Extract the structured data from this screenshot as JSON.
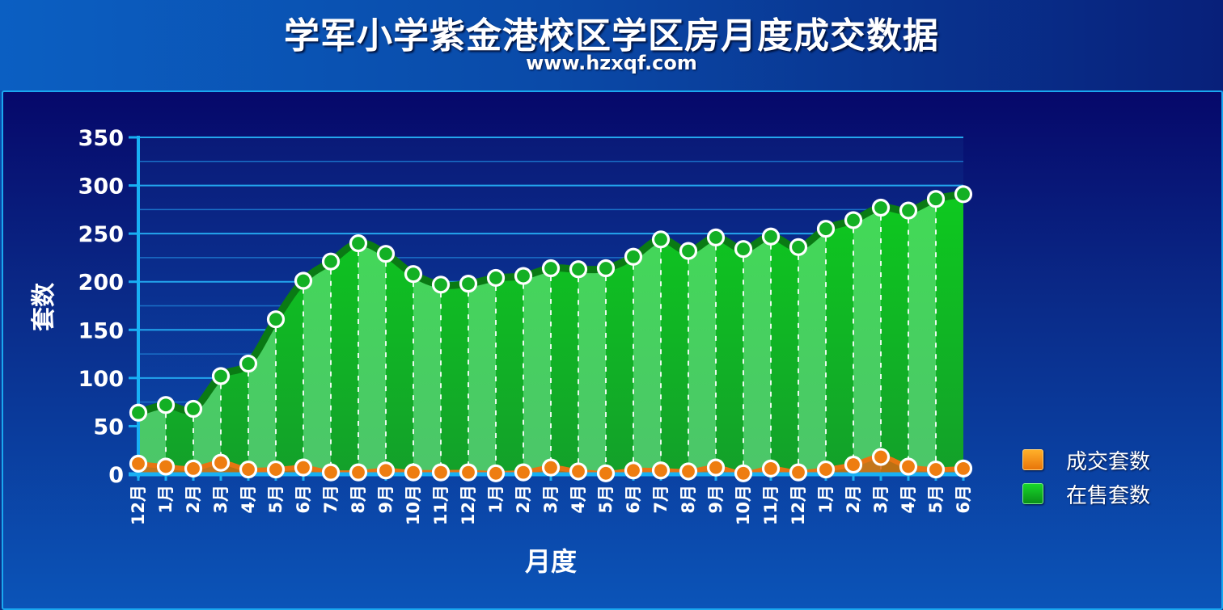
{
  "header": {
    "title": "学军小学紫金港校区学区房月度成交数据",
    "subtitle": "www.hzxqf.com"
  },
  "legend": {
    "items": [
      {
        "label": "成交套数",
        "color": "#f08a10"
      },
      {
        "label": "在售套数",
        "color": "#0dbb1e"
      }
    ]
  },
  "chart_data": {
    "type": "area",
    "title": "学军小学紫金港校区学区房月度成交数据",
    "xlabel": "月度",
    "ylabel": "套数",
    "ylim": [
      0,
      350
    ],
    "yticks": [
      0,
      50,
      100,
      150,
      200,
      250,
      300,
      350
    ],
    "grid": true,
    "legend_position": "right",
    "categories": [
      "12月",
      "1月",
      "2月",
      "3月",
      "4月",
      "5月",
      "6月",
      "7月",
      "8月",
      "9月",
      "10月",
      "11月",
      "12月",
      "1月",
      "2月",
      "3月",
      "4月",
      "5月",
      "6月",
      "7月",
      "8月",
      "9月",
      "10月",
      "11月",
      "12月",
      "1月",
      "2月",
      "3月",
      "4月",
      "5月",
      "6月"
    ],
    "series": [
      {
        "name": "在售套数",
        "color": "#0dbb1e",
        "values": [
          64,
          72,
          68,
          102,
          115,
          161,
          201,
          221,
          240,
          229,
          208,
          197,
          198,
          204,
          206,
          214,
          213,
          214,
          226,
          244,
          232,
          246,
          234,
          247,
          236,
          255,
          264,
          277,
          274,
          286,
          291
        ]
      },
      {
        "name": "成交套数",
        "color": "#f08a10",
        "values": [
          11,
          8,
          6,
          12,
          5,
          5,
          7,
          2,
          2,
          4,
          2,
          2,
          2,
          1,
          2,
          7,
          3,
          1,
          4,
          4,
          3,
          7,
          1,
          6,
          2,
          5,
          10,
          18,
          8,
          5,
          6
        ]
      }
    ]
  }
}
